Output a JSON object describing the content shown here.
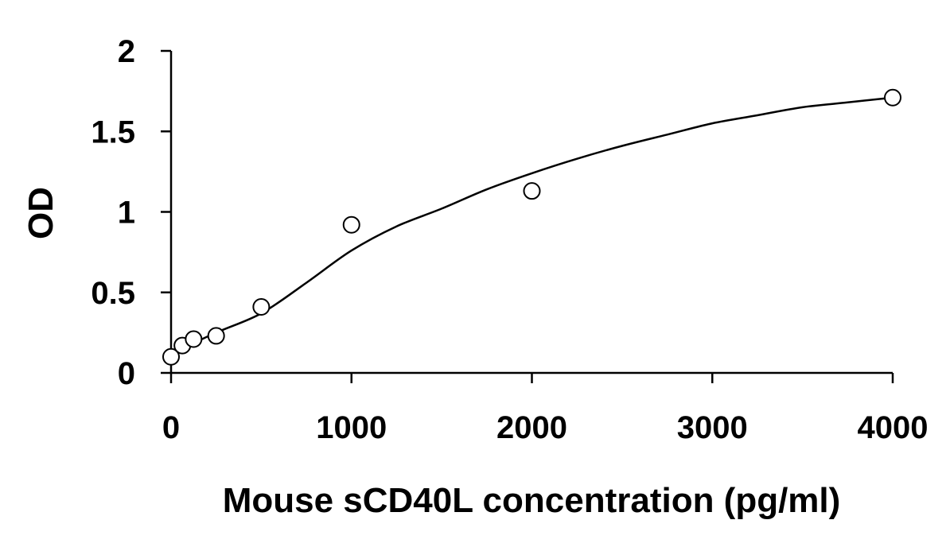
{
  "chart_data": {
    "type": "scatter",
    "title": "",
    "xlabel": "Mouse sCD40L concentration (pg/ml)",
    "ylabel": "OD",
    "xlim": [
      0,
      4000
    ],
    "ylim": [
      0,
      2
    ],
    "x_ticks": [
      0,
      1000,
      2000,
      3000,
      4000
    ],
    "y_ticks": [
      0,
      0.5,
      1,
      1.5,
      2
    ],
    "x_tick_labels": [
      "0",
      "1000",
      "2000",
      "3000",
      "4000"
    ],
    "y_tick_labels": [
      "0",
      "0.5",
      "1",
      "1.5",
      "2"
    ],
    "grid": false,
    "legend": "none",
    "marker": "open-circle",
    "series": [
      {
        "x": [
          0,
          62.5,
          125,
          250,
          500,
          1000,
          2000,
          4000
        ],
        "y": [
          0.1,
          0.17,
          0.21,
          0.23,
          0.41,
          0.92,
          1.13,
          1.71
        ]
      }
    ],
    "trendline": {
      "type": "polynomial",
      "x": [
        0,
        250,
        500,
        750,
        1000,
        1250,
        1500,
        1750,
        2000,
        2250,
        2500,
        2750,
        3000,
        3250,
        3500,
        3750,
        4000
      ],
      "y": [
        0.12,
        0.25,
        0.37,
        0.56,
        0.76,
        0.91,
        1.02,
        1.14,
        1.24,
        1.33,
        1.41,
        1.48,
        1.55,
        1.6,
        1.65,
        1.68,
        1.71
      ]
    },
    "colors": {
      "axis": "#000000",
      "marker_stroke": "#000000",
      "marker_fill": "#ffffff",
      "trendline": "#000000"
    }
  }
}
